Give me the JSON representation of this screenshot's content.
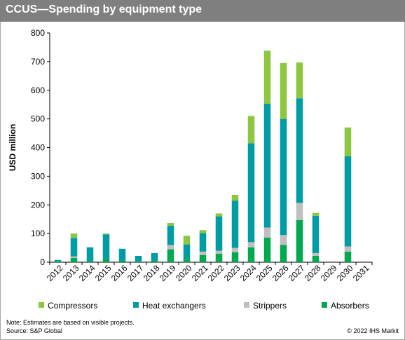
{
  "title": "CCUS—Spending by equipment type",
  "footer": {
    "note": "Note: Estimates are based on visible projects.",
    "source": "Source: S&P Global",
    "copyright": "© 2022 IHS Markit"
  },
  "chart_data": {
    "type": "bar",
    "stacked": true,
    "title": "CCUS—Spending by equipment type",
    "xlabel": "",
    "ylabel": "USD million",
    "ylim": [
      0,
      800
    ],
    "yticks": [
      0,
      100,
      200,
      300,
      400,
      500,
      600,
      700,
      800
    ],
    "grid": false,
    "legend_position": "bottom",
    "categories": [
      "2012",
      "2013",
      "2014",
      "2015",
      "2016",
      "2017",
      "2018",
      "2019",
      "2020",
      "2021",
      "2022",
      "2023",
      "2024",
      "2025",
      "2026",
      "2027",
      "2028",
      "2029",
      "2030",
      "2031"
    ],
    "series": [
      {
        "name": "Compressors",
        "color": "#8dc63f",
        "values": [
          0,
          15,
          0,
          3,
          0,
          0,
          0,
          10,
          30,
          10,
          10,
          20,
          95,
          185,
          195,
          125,
          10,
          0,
          100,
          0
        ]
      },
      {
        "name": "Heat exchangers",
        "color": "#009ca6",
        "values": [
          5,
          65,
          47,
          85,
          42,
          18,
          26,
          67,
          50,
          65,
          120,
          165,
          345,
          432,
          405,
          365,
          130,
          0,
          315,
          0
        ]
      },
      {
        "name": "Strippers",
        "color": "#bfbfbf",
        "values": [
          0,
          5,
          0,
          0,
          0,
          0,
          0,
          15,
          0,
          12,
          10,
          15,
          18,
          35,
          35,
          60,
          10,
          0,
          18,
          0
        ]
      },
      {
        "name": "Absorbers",
        "color": "#00a94f",
        "values": [
          3,
          15,
          5,
          12,
          5,
          4,
          6,
          45,
          12,
          25,
          30,
          35,
          52,
          86,
          60,
          147,
          22,
          0,
          37,
          0
        ]
      }
    ]
  }
}
